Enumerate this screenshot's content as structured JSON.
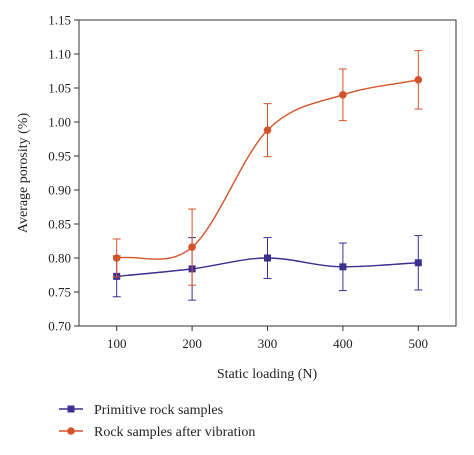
{
  "chart_data": {
    "type": "line",
    "title": "",
    "xlabel": "Static loading (N)",
    "ylabel": "Average porosity (%)",
    "x": [
      100,
      200,
      300,
      400,
      500
    ],
    "xlim": [
      50,
      550
    ],
    "ylim": [
      0.7,
      1.15
    ],
    "xticks": [
      "100",
      "200",
      "300",
      "400",
      "500"
    ],
    "yticks": [
      "0.70",
      "0.75",
      "0.80",
      "0.85",
      "0.90",
      "0.95",
      "1.00",
      "1.05",
      "1.10",
      "1.15"
    ],
    "grid": false,
    "legend_position": "bottom-left",
    "series": [
      {
        "name": "Primitive rock samples",
        "color": "#3b2f8f",
        "marker": "square",
        "values": [
          0.773,
          0.784,
          0.8,
          0.787,
          0.793
        ],
        "error": [
          0.03,
          0.046,
          0.03,
          0.035,
          0.04
        ]
      },
      {
        "name": "Rock samples after vibration",
        "color": "#d4542a",
        "marker": "circle",
        "values": [
          0.8,
          0.816,
          0.988,
          1.04,
          1.062
        ],
        "error": [
          0.028,
          0.056,
          0.039,
          0.038,
          0.043
        ]
      }
    ]
  }
}
